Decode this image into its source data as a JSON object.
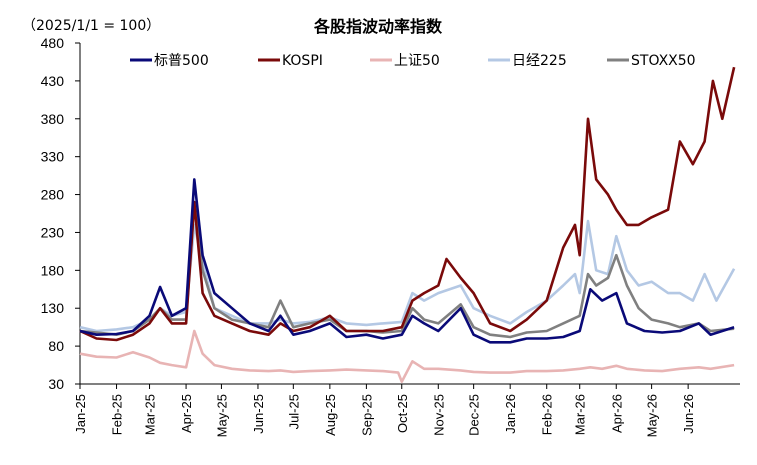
{
  "chart_data": {
    "type": "line",
    "title": "各股指波动率指数",
    "unit_label": "（2025/1/1 = 100）",
    "xlabel": "",
    "ylabel": "",
    "ylim": [
      30,
      480
    ],
    "yticks": [
      30,
      80,
      130,
      180,
      230,
      280,
      330,
      380,
      430,
      480
    ],
    "x_range": [
      "2025-01-01",
      "2026-07-15"
    ],
    "xticks": [
      "Jan-25",
      "Feb-25",
      "Mar-25",
      "Apr-25",
      "May-25",
      "Jun-25",
      "Jul-25",
      "Aug-25",
      "Sep-25",
      "Oct-25",
      "Nov-25",
      "Dec-25",
      "Jan-26",
      "Feb-26",
      "Mar-26",
      "Apr-26",
      "May-26",
      "Jun-26"
    ],
    "xtick_dates": [
      "2025-01-01",
      "2025-02-01",
      "2025-03-01",
      "2025-04-01",
      "2025-05-01",
      "2025-06-01",
      "2025-07-01",
      "2025-08-01",
      "2025-09-01",
      "2025-10-01",
      "2025-11-01",
      "2025-12-01",
      "2026-01-01",
      "2026-02-01",
      "2026-03-01",
      "2026-04-01",
      "2026-05-01",
      "2026-06-01"
    ],
    "grid": false,
    "legend_position": "top",
    "series": [
      {
        "name": "标普500",
        "color": "#0a0a78",
        "points": [
          [
            "2025-01-01",
            100
          ],
          [
            "2025-01-15",
            95
          ],
          [
            "2025-02-01",
            96
          ],
          [
            "2025-02-15",
            100
          ],
          [
            "2025-03-01",
            120
          ],
          [
            "2025-03-10",
            158
          ],
          [
            "2025-03-20",
            120
          ],
          [
            "2025-04-01",
            130
          ],
          [
            "2025-04-08",
            300
          ],
          [
            "2025-04-15",
            200
          ],
          [
            "2025-04-25",
            150
          ],
          [
            "2025-05-10",
            130
          ],
          [
            "2025-05-25",
            110
          ],
          [
            "2025-06-10",
            100
          ],
          [
            "2025-06-20",
            120
          ],
          [
            "2025-07-01",
            95
          ],
          [
            "2025-07-15",
            100
          ],
          [
            "2025-08-01",
            110
          ],
          [
            "2025-08-15",
            92
          ],
          [
            "2025-09-01",
            95
          ],
          [
            "2025-09-15",
            90
          ],
          [
            "2025-10-01",
            95
          ],
          [
            "2025-10-10",
            120
          ],
          [
            "2025-10-20",
            110
          ],
          [
            "2025-11-01",
            100
          ],
          [
            "2025-11-20",
            130
          ],
          [
            "2025-12-01",
            95
          ],
          [
            "2025-12-15",
            85
          ],
          [
            "2026-01-01",
            85
          ],
          [
            "2026-01-15",
            90
          ],
          [
            "2026-02-01",
            90
          ],
          [
            "2026-02-15",
            92
          ],
          [
            "2026-03-01",
            100
          ],
          [
            "2026-03-10",
            155
          ],
          [
            "2026-03-20",
            140
          ],
          [
            "2026-04-01",
            150
          ],
          [
            "2026-04-10",
            110
          ],
          [
            "2026-04-25",
            100
          ],
          [
            "2026-05-10",
            98
          ],
          [
            "2026-05-25",
            100
          ],
          [
            "2026-06-10",
            110
          ],
          [
            "2026-06-20",
            95
          ],
          [
            "2026-07-10",
            105
          ]
        ]
      },
      {
        "name": "KOSPI",
        "color": "#7a0a0a",
        "points": [
          [
            "2025-01-01",
            100
          ],
          [
            "2025-01-15",
            90
          ],
          [
            "2025-02-01",
            88
          ],
          [
            "2025-02-15",
            95
          ],
          [
            "2025-03-01",
            110
          ],
          [
            "2025-03-10",
            130
          ],
          [
            "2025-03-20",
            110
          ],
          [
            "2025-04-01",
            110
          ],
          [
            "2025-04-08",
            270
          ],
          [
            "2025-04-15",
            150
          ],
          [
            "2025-04-25",
            120
          ],
          [
            "2025-05-10",
            110
          ],
          [
            "2025-05-25",
            100
          ],
          [
            "2025-06-10",
            95
          ],
          [
            "2025-06-20",
            110
          ],
          [
            "2025-07-01",
            100
          ],
          [
            "2025-07-15",
            105
          ],
          [
            "2025-08-01",
            120
          ],
          [
            "2025-08-15",
            100
          ],
          [
            "2025-09-01",
            100
          ],
          [
            "2025-09-15",
            100
          ],
          [
            "2025-10-01",
            105
          ],
          [
            "2025-10-10",
            140
          ],
          [
            "2025-10-20",
            150
          ],
          [
            "2025-11-01",
            160
          ],
          [
            "2025-11-08",
            195
          ],
          [
            "2025-11-20",
            170
          ],
          [
            "2025-12-01",
            150
          ],
          [
            "2025-12-15",
            110
          ],
          [
            "2026-01-01",
            100
          ],
          [
            "2026-01-15",
            115
          ],
          [
            "2026-02-01",
            140
          ],
          [
            "2026-02-15",
            210
          ],
          [
            "2026-02-25",
            240
          ],
          [
            "2026-03-01",
            200
          ],
          [
            "2026-03-08",
            380
          ],
          [
            "2026-03-15",
            300
          ],
          [
            "2026-03-25",
            280
          ],
          [
            "2026-04-01",
            260
          ],
          [
            "2026-04-10",
            240
          ],
          [
            "2026-04-20",
            240
          ],
          [
            "2026-05-01",
            250
          ],
          [
            "2026-05-15",
            260
          ],
          [
            "2026-05-25",
            350
          ],
          [
            "2026-06-05",
            320
          ],
          [
            "2026-06-15",
            350
          ],
          [
            "2026-06-22",
            430
          ],
          [
            "2026-06-30",
            380
          ],
          [
            "2026-07-10",
            448
          ]
        ]
      },
      {
        "name": "上证50",
        "color": "#e8b4b4",
        "points": [
          [
            "2025-01-01",
            70
          ],
          [
            "2025-01-15",
            66
          ],
          [
            "2025-02-01",
            65
          ],
          [
            "2025-02-15",
            72
          ],
          [
            "2025-03-01",
            65
          ],
          [
            "2025-03-10",
            58
          ],
          [
            "2025-03-20",
            55
          ],
          [
            "2025-04-01",
            52
          ],
          [
            "2025-04-08",
            100
          ],
          [
            "2025-04-15",
            70
          ],
          [
            "2025-04-25",
            55
          ],
          [
            "2025-05-10",
            50
          ],
          [
            "2025-05-25",
            48
          ],
          [
            "2025-06-10",
            47
          ],
          [
            "2025-06-20",
            48
          ],
          [
            "2025-07-01",
            46
          ],
          [
            "2025-07-15",
            47
          ],
          [
            "2025-08-01",
            48
          ],
          [
            "2025-08-15",
            49
          ],
          [
            "2025-09-01",
            48
          ],
          [
            "2025-09-15",
            47
          ],
          [
            "2025-09-28",
            45
          ],
          [
            "2025-10-01",
            33
          ],
          [
            "2025-10-10",
            60
          ],
          [
            "2025-10-20",
            50
          ],
          [
            "2025-11-01",
            50
          ],
          [
            "2025-11-20",
            48
          ],
          [
            "2025-12-01",
            46
          ],
          [
            "2025-12-15",
            45
          ],
          [
            "2026-01-01",
            45
          ],
          [
            "2026-01-15",
            47
          ],
          [
            "2026-02-01",
            47
          ],
          [
            "2026-02-15",
            48
          ],
          [
            "2026-03-01",
            50
          ],
          [
            "2026-03-10",
            52
          ],
          [
            "2026-03-20",
            50
          ],
          [
            "2026-04-01",
            54
          ],
          [
            "2026-04-10",
            50
          ],
          [
            "2026-04-25",
            48
          ],
          [
            "2026-05-10",
            47
          ],
          [
            "2026-05-25",
            50
          ],
          [
            "2026-06-10",
            52
          ],
          [
            "2026-06-20",
            50
          ],
          [
            "2026-07-10",
            55
          ]
        ]
      },
      {
        "name": "日经225",
        "color": "#b4c8e4",
        "points": [
          [
            "2025-01-01",
            105
          ],
          [
            "2025-01-15",
            100
          ],
          [
            "2025-02-01",
            102
          ],
          [
            "2025-02-15",
            105
          ],
          [
            "2025-03-01",
            115
          ],
          [
            "2025-03-10",
            130
          ],
          [
            "2025-03-20",
            120
          ],
          [
            "2025-04-01",
            125
          ],
          [
            "2025-04-08",
            240
          ],
          [
            "2025-04-15",
            190
          ],
          [
            "2025-04-25",
            130
          ],
          [
            "2025-05-10",
            120
          ],
          [
            "2025-05-25",
            110
          ],
          [
            "2025-06-10",
            110
          ],
          [
            "2025-06-20",
            115
          ],
          [
            "2025-07-01",
            110
          ],
          [
            "2025-07-15",
            112
          ],
          [
            "2025-08-01",
            118
          ],
          [
            "2025-08-15",
            110
          ],
          [
            "2025-09-01",
            108
          ],
          [
            "2025-09-15",
            110
          ],
          [
            "2025-10-01",
            112
          ],
          [
            "2025-10-10",
            150
          ],
          [
            "2025-10-20",
            140
          ],
          [
            "2025-11-01",
            150
          ],
          [
            "2025-11-20",
            160
          ],
          [
            "2025-12-01",
            130
          ],
          [
            "2025-12-15",
            120
          ],
          [
            "2026-01-01",
            110
          ],
          [
            "2026-01-15",
            125
          ],
          [
            "2026-02-01",
            140
          ],
          [
            "2026-02-15",
            160
          ],
          [
            "2026-02-25",
            175
          ],
          [
            "2026-03-01",
            150
          ],
          [
            "2026-03-08",
            245
          ],
          [
            "2026-03-15",
            180
          ],
          [
            "2026-03-25",
            175
          ],
          [
            "2026-04-01",
            225
          ],
          [
            "2026-04-10",
            180
          ],
          [
            "2026-04-20",
            160
          ],
          [
            "2026-05-01",
            165
          ],
          [
            "2026-05-15",
            150
          ],
          [
            "2026-05-25",
            150
          ],
          [
            "2026-06-05",
            140
          ],
          [
            "2026-06-15",
            175
          ],
          [
            "2026-06-25",
            140
          ],
          [
            "2026-07-10",
            182
          ]
        ]
      },
      {
        "name": "STOXX50",
        "color": "#808080",
        "points": [
          [
            "2025-01-01",
            100
          ],
          [
            "2025-01-15",
            98
          ],
          [
            "2025-02-01",
            95
          ],
          [
            "2025-02-15",
            100
          ],
          [
            "2025-03-01",
            115
          ],
          [
            "2025-03-10",
            130
          ],
          [
            "2025-03-20",
            115
          ],
          [
            "2025-04-01",
            115
          ],
          [
            "2025-04-08",
            270
          ],
          [
            "2025-04-15",
            180
          ],
          [
            "2025-04-25",
            130
          ],
          [
            "2025-05-10",
            115
          ],
          [
            "2025-05-25",
            110
          ],
          [
            "2025-06-10",
            105
          ],
          [
            "2025-06-20",
            140
          ],
          [
            "2025-07-01",
            105
          ],
          [
            "2025-07-15",
            110
          ],
          [
            "2025-08-01",
            115
          ],
          [
            "2025-08-15",
            100
          ],
          [
            "2025-09-01",
            100
          ],
          [
            "2025-09-15",
            98
          ],
          [
            "2025-10-01",
            100
          ],
          [
            "2025-10-10",
            130
          ],
          [
            "2025-10-20",
            115
          ],
          [
            "2025-11-01",
            110
          ],
          [
            "2025-11-20",
            135
          ],
          [
            "2025-12-01",
            105
          ],
          [
            "2025-12-15",
            95
          ],
          [
            "2026-01-01",
            92
          ],
          [
            "2026-01-15",
            98
          ],
          [
            "2026-02-01",
            100
          ],
          [
            "2026-02-15",
            110
          ],
          [
            "2026-03-01",
            120
          ],
          [
            "2026-03-08",
            175
          ],
          [
            "2026-03-15",
            160
          ],
          [
            "2026-03-25",
            170
          ],
          [
            "2026-04-01",
            200
          ],
          [
            "2026-04-10",
            160
          ],
          [
            "2026-04-20",
            130
          ],
          [
            "2026-05-01",
            115
          ],
          [
            "2026-05-15",
            110
          ],
          [
            "2026-05-25",
            105
          ],
          [
            "2026-06-10",
            110
          ],
          [
            "2026-06-20",
            100
          ],
          [
            "2026-07-10",
            103
          ]
        ]
      }
    ]
  }
}
